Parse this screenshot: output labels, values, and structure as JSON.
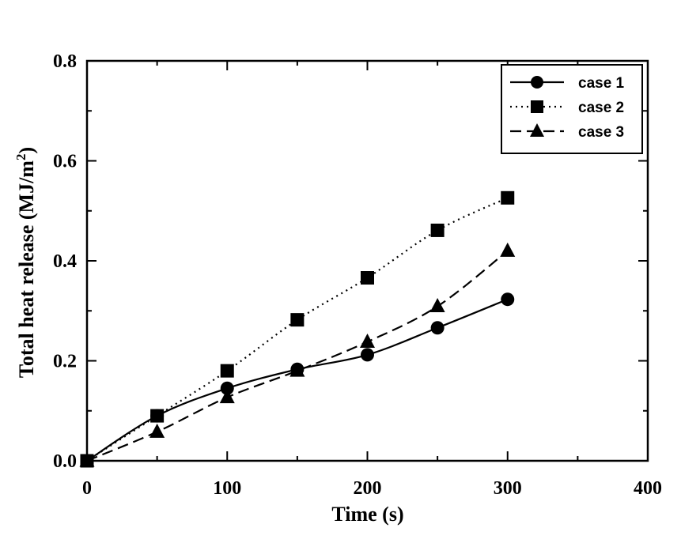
{
  "chart_data": {
    "type": "line",
    "xlabel": "Time (s)",
    "ylabel_main": "Total heat release (MJ/m",
    "ylabel_sup": "2",
    "ylabel_close": ")",
    "xlim": [
      0,
      400
    ],
    "ylim": [
      0,
      0.8
    ],
    "xticks": [
      0,
      100,
      200,
      300,
      400
    ],
    "xtick_labels": [
      "0",
      "100",
      "200",
      "300",
      "400"
    ],
    "yticks": [
      0,
      0.2,
      0.4,
      0.6,
      0.8
    ],
    "ytick_labels": [
      "0.0",
      "0.2",
      "0.4",
      "0.6",
      "0.8"
    ],
    "grid": false,
    "legend_position": "top-right",
    "x": [
      0,
      50,
      100,
      150,
      200,
      250,
      300
    ],
    "series": [
      {
        "name": "case 1",
        "marker": "circle",
        "line_style": "solid",
        "color": "#000000",
        "values": [
          0.0,
          0.09,
          0.145,
          0.183,
          0.212,
          0.266,
          0.323
        ]
      },
      {
        "name": "case 2",
        "marker": "square",
        "line_style": "dotted",
        "color": "#000000",
        "values": [
          0.0,
          0.09,
          0.18,
          0.282,
          0.366,
          0.461,
          0.526
        ]
      },
      {
        "name": "case 3",
        "marker": "triangle",
        "line_style": "dashed",
        "color": "#000000",
        "values": [
          0.0,
          0.058,
          0.127,
          0.18,
          0.238,
          0.309,
          0.42
        ]
      }
    ]
  }
}
